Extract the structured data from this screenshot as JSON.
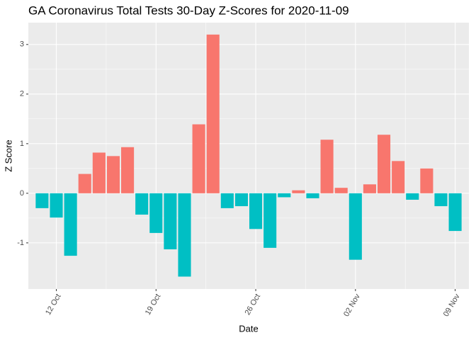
{
  "chart_data": {
    "type": "bar",
    "title": "GA Coronavirus Total Tests 30-Day Z-Scores for 2020-11-09",
    "x_label": "Date",
    "y_label": "Z Score",
    "categories": [
      null,
      "12 Oct",
      null,
      null,
      null,
      null,
      null,
      null,
      "19 Oct",
      null,
      null,
      null,
      null,
      null,
      null,
      "26 Oct",
      null,
      null,
      null,
      null,
      null,
      null,
      "02 Nov",
      null,
      null,
      null,
      null,
      null,
      null,
      "09 Nov"
    ],
    "values": [
      -0.3,
      -0.49,
      -1.26,
      0.39,
      0.82,
      0.75,
      0.93,
      -0.43,
      -0.8,
      -1.13,
      -1.68,
      1.39,
      3.2,
      -0.3,
      -0.26,
      -0.72,
      -1.1,
      -0.08,
      0.06,
      -0.1,
      1.08,
      0.11,
      -1.34,
      0.18,
      1.18,
      0.65,
      -0.13,
      0.5,
      -0.26,
      -0.76
    ],
    "color_above_zero": "#F8766D",
    "color_below_zero": "#00BFC4",
    "ylim": [
      -1.93,
      3.44
    ],
    "yticks": [
      -1,
      0,
      1,
      2,
      3
    ],
    "grid": true
  }
}
